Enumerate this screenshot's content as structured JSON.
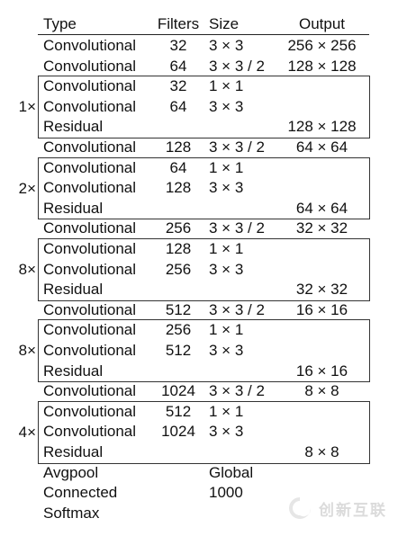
{
  "header": {
    "type": "Type",
    "filters": "Filters",
    "size": "Size",
    "output": "Output"
  },
  "rows": [
    {
      "type": "Convolutional",
      "filters": "32",
      "size": "3 × 3",
      "output": "256 × 256"
    },
    {
      "type": "Convolutional",
      "filters": "64",
      "size": "3 × 3 / 2",
      "output": "128 × 128"
    },
    {
      "type": "Convolutional",
      "filters": "32",
      "size": "1 × 1",
      "output": ""
    },
    {
      "type": "Convolutional",
      "filters": "64",
      "size": "3 × 3",
      "output": ""
    },
    {
      "type": "Residual",
      "filters": "",
      "size": "",
      "output": "128 × 128"
    },
    {
      "type": "Convolutional",
      "filters": "128",
      "size": "3 × 3 / 2",
      "output": "64 × 64"
    },
    {
      "type": "Convolutional",
      "filters": "64",
      "size": "1 × 1",
      "output": ""
    },
    {
      "type": "Convolutional",
      "filters": "128",
      "size": "3 × 3",
      "output": ""
    },
    {
      "type": "Residual",
      "filters": "",
      "size": "",
      "output": "64 × 64"
    },
    {
      "type": "Convolutional",
      "filters": "256",
      "size": "3 × 3 / 2",
      "output": "32 × 32"
    },
    {
      "type": "Convolutional",
      "filters": "128",
      "size": "1 × 1",
      "output": ""
    },
    {
      "type": "Convolutional",
      "filters": "256",
      "size": "3 × 3",
      "output": ""
    },
    {
      "type": "Residual",
      "filters": "",
      "size": "",
      "output": "32 × 32"
    },
    {
      "type": "Convolutional",
      "filters": "512",
      "size": "3 × 3 / 2",
      "output": "16 × 16"
    },
    {
      "type": "Convolutional",
      "filters": "256",
      "size": "1 × 1",
      "output": ""
    },
    {
      "type": "Convolutional",
      "filters": "512",
      "size": "3 × 3",
      "output": ""
    },
    {
      "type": "Residual",
      "filters": "",
      "size": "",
      "output": "16 × 16"
    },
    {
      "type": "Convolutional",
      "filters": "1024",
      "size": "3 × 3 / 2",
      "output": "8 × 8"
    },
    {
      "type": "Convolutional",
      "filters": "512",
      "size": "1 × 1",
      "output": ""
    },
    {
      "type": "Convolutional",
      "filters": "1024",
      "size": "3 × 3",
      "output": ""
    },
    {
      "type": "Residual",
      "filters": "",
      "size": "",
      "output": "8 × 8"
    },
    {
      "type": "Avgpool",
      "filters": "",
      "size": "Global",
      "output": ""
    },
    {
      "type": "Connected",
      "filters": "",
      "size": "1000",
      "output": ""
    },
    {
      "type": "Softmax",
      "filters": "",
      "size": "",
      "output": ""
    }
  ],
  "repeat_blocks": [
    {
      "multiplier": "1×",
      "first_row": 2,
      "last_row": 4
    },
    {
      "multiplier": "2×",
      "first_row": 6,
      "last_row": 8
    },
    {
      "multiplier": "8×",
      "first_row": 10,
      "last_row": 12
    },
    {
      "multiplier": "8×",
      "first_row": 14,
      "last_row": 16
    },
    {
      "multiplier": "4×",
      "first_row": 18,
      "last_row": 20
    }
  ],
  "watermark": {
    "text": "创新互联",
    "icon": "swirl-logo-icon"
  }
}
